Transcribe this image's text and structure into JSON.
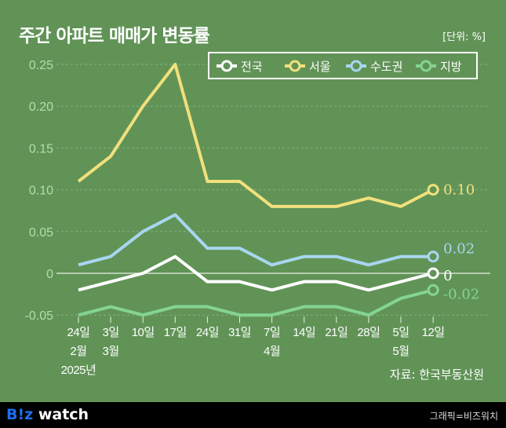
{
  "header": {
    "title": "주간 아파트 매매가 변동률",
    "unit": "[단위: %]"
  },
  "source": "자료: 한국부동산원",
  "footer": {
    "logo_b": "B!z",
    "logo_rest": " watch",
    "credit": "그래픽=비즈워치"
  },
  "chart_data": {
    "type": "line",
    "title": "주간 아파트 매매가 변동률",
    "ylim": [
      -0.05,
      0.25
    ],
    "yticks": [
      "0.25",
      "0.20",
      "0.15",
      "0.10",
      "0.05",
      "0",
      "-0.05"
    ],
    "ytick_values": [
      0.25,
      0.2,
      0.15,
      0.1,
      0.05,
      0,
      -0.05
    ],
    "categories": [
      [
        "24일",
        "2월",
        "2025년"
      ],
      [
        "3일",
        "3월"
      ],
      [
        "10일"
      ],
      [
        "17일"
      ],
      [
        "24일"
      ],
      [
        "31일"
      ],
      [
        "7일",
        "4월"
      ],
      [
        "14일"
      ],
      [
        "21일"
      ],
      [
        "28일"
      ],
      [
        "5일",
        "5월"
      ],
      [
        "12일"
      ]
    ],
    "legend_position": "top-right",
    "series": [
      {
        "name": "전국",
        "color": "#ffffff",
        "values": [
          -0.02,
          -0.01,
          0,
          0.02,
          -0.01,
          -0.01,
          -0.02,
          -0.01,
          -0.01,
          -0.02,
          -0.01,
          0
        ],
        "end_label": "0"
      },
      {
        "name": "서울",
        "color": "#f1e07c",
        "values": [
          0.11,
          0.14,
          0.2,
          0.25,
          0.11,
          0.11,
          0.08,
          0.08,
          0.08,
          0.09,
          0.08,
          0.1
        ],
        "end_label": "0.10"
      },
      {
        "name": "수도권",
        "color": "#a8d6ef",
        "values": [
          0.01,
          0.02,
          0.05,
          0.07,
          0.03,
          0.03,
          0.01,
          0.02,
          0.02,
          0.01,
          0.02,
          0.02
        ],
        "end_label": "0.02"
      },
      {
        "name": "지방",
        "color": "#84d493",
        "values": [
          -0.05,
          -0.04,
          -0.05,
          -0.04,
          -0.04,
          -0.05,
          -0.05,
          -0.04,
          -0.04,
          -0.05,
          -0.03,
          -0.02
        ],
        "end_label": "-0.02"
      }
    ]
  }
}
